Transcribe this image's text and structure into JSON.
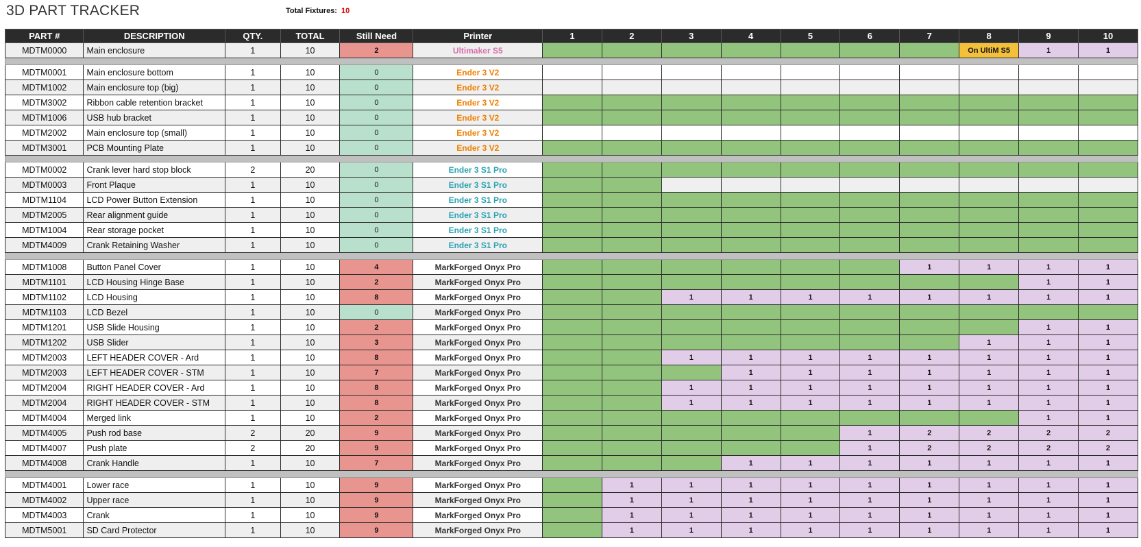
{
  "app": {
    "title": "3D PART TRACKER"
  },
  "summary": {
    "fixtures_label": "Total Fixtures:",
    "fixtures_value": "10"
  },
  "colors": {
    "Ultimaker S5": "#d670a8",
    "Ender 3 V2": "#f07f00",
    "Ender 3 S1 Pro": "#2aa3b4",
    "MarkForged Onyx Pro": "#333333",
    "done": "#93c47d",
    "pending": "#e2cde8",
    "need": "#e8948f",
    "complete": "#b9e0cc",
    "note": "#f3c03c"
  },
  "columns": [
    "PART #",
    "DESCRIPTION",
    "QTY.",
    "TOTAL",
    "Still Need",
    "Printer",
    "1",
    "2",
    "3",
    "4",
    "5",
    "6",
    "7",
    "8",
    "9",
    "10"
  ],
  "groups": [
    {
      "rows": [
        {
          "part": "MDTM0000",
          "desc": "Main enclosure",
          "qty": "1",
          "total": "10",
          "need": "2",
          "printer": "Ultimaker S5",
          "cells": [
            "G",
            "G",
            "G",
            "G",
            "G",
            "G",
            "G",
            "On UltiM S5",
            "1",
            "1"
          ]
        }
      ]
    },
    {
      "rows": [
        {
          "part": "MDTM0001",
          "desc": "Main enclosure bottom",
          "qty": "1",
          "total": "10",
          "need": "0",
          "printer": "Ender 3 V2",
          "cells": [
            "",
            "",
            "",
            "",
            "",
            "",
            "",
            "",
            "",
            ""
          ]
        },
        {
          "part": "MDTM1002",
          "desc": "Main enclosure top (big)",
          "qty": "1",
          "total": "10",
          "need": "0",
          "printer": "Ender 3 V2",
          "cells": [
            "",
            "",
            "",
            "",
            "",
            "",
            "",
            "",
            "",
            ""
          ]
        },
        {
          "part": "MDTM3002",
          "desc": "Ribbon cable retention bracket",
          "qty": "1",
          "total": "10",
          "need": "0",
          "printer": "Ender 3 V2",
          "cells": [
            "G",
            "G",
            "G",
            "G",
            "G",
            "G",
            "G",
            "G",
            "G",
            "G"
          ]
        },
        {
          "part": "MDTM1006",
          "desc": "USB hub bracket",
          "qty": "1",
          "total": "10",
          "need": "0",
          "printer": "Ender 3 V2",
          "cells": [
            "G",
            "G",
            "G",
            "G",
            "G",
            "G",
            "G",
            "G",
            "G",
            "G"
          ]
        },
        {
          "part": "MDTM2002",
          "desc": "Main enclosure top (small)",
          "qty": "1",
          "total": "10",
          "need": "0",
          "printer": "Ender 3 V2",
          "cells": [
            "",
            "",
            "",
            "",
            "",
            "",
            "",
            "",
            "",
            ""
          ]
        },
        {
          "part": "MDTM3001",
          "desc": "PCB Mounting Plate",
          "qty": "1",
          "total": "10",
          "need": "0",
          "printer": "Ender 3 V2",
          "cells": [
            "G",
            "G",
            "G",
            "G",
            "G",
            "G",
            "G",
            "G",
            "G",
            "G"
          ]
        }
      ]
    },
    {
      "rows": [
        {
          "part": "MDTM0002",
          "desc": "Crank lever hard stop block",
          "qty": "2",
          "total": "20",
          "need": "0",
          "printer": "Ender 3 S1 Pro",
          "cells": [
            "G",
            "G",
            "G",
            "G",
            "G",
            "G",
            "G",
            "G",
            "G",
            "G"
          ]
        },
        {
          "part": "MDTM0003",
          "desc": "Front Plaque",
          "qty": "1",
          "total": "10",
          "need": "0",
          "printer": "Ender 3 S1 Pro",
          "cells": [
            "G",
            "G",
            "",
            "",
            "",
            "",
            "",
            "",
            "",
            ""
          ]
        },
        {
          "part": "MDTM1104",
          "desc": "LCD Power Button Extension",
          "qty": "1",
          "total": "10",
          "need": "0",
          "printer": "Ender 3 S1 Pro",
          "cells": [
            "G",
            "G",
            "G",
            "G",
            "G",
            "G",
            "G",
            "G",
            "G",
            "G"
          ]
        },
        {
          "part": "MDTM2005",
          "desc": "Rear alignment guide",
          "qty": "1",
          "total": "10",
          "need": "0",
          "printer": "Ender 3 S1 Pro",
          "cells": [
            "G",
            "G",
            "G",
            "G",
            "G",
            "G",
            "G",
            "G",
            "G",
            "G"
          ]
        },
        {
          "part": "MDTM1004",
          "desc": "Rear storage pocket",
          "qty": "1",
          "total": "10",
          "need": "0",
          "printer": "Ender 3 S1 Pro",
          "cells": [
            "G",
            "G",
            "G",
            "G",
            "G",
            "G",
            "G",
            "G",
            "G",
            "G"
          ]
        },
        {
          "part": "MDTM4009",
          "desc": "Crank Retaining Washer",
          "qty": "1",
          "total": "10",
          "need": "0",
          "printer": "Ender 3 S1 Pro",
          "cells": [
            "G",
            "G",
            "G",
            "G",
            "G",
            "G",
            "G",
            "G",
            "G",
            "G"
          ]
        }
      ]
    },
    {
      "rows": [
        {
          "part": "MDTM1008",
          "desc": "Button Panel Cover",
          "qty": "1",
          "total": "10",
          "need": "4",
          "printer": "MarkForged Onyx Pro",
          "cells": [
            "G",
            "G",
            "G",
            "G",
            "G",
            "G",
            "1",
            "1",
            "1",
            "1"
          ]
        },
        {
          "part": "MDTM1101",
          "desc": "LCD Housing Hinge Base",
          "qty": "1",
          "total": "10",
          "need": "2",
          "printer": "MarkForged Onyx Pro",
          "cells": [
            "G",
            "G",
            "G",
            "G",
            "G",
            "G",
            "G",
            "G",
            "1",
            "1"
          ]
        },
        {
          "part": "MDTM1102",
          "desc": "LCD Housing",
          "qty": "1",
          "total": "10",
          "need": "8",
          "printer": "MarkForged Onyx Pro",
          "cells": [
            "G",
            "G",
            "1",
            "1",
            "1",
            "1",
            "1",
            "1",
            "1",
            "1"
          ]
        },
        {
          "part": "MDTM1103",
          "desc": "LCD Bezel",
          "qty": "1",
          "total": "10",
          "need": "0",
          "printer": "MarkForged Onyx Pro",
          "cells": [
            "G",
            "G",
            "G",
            "G",
            "G",
            "G",
            "G",
            "G",
            "G",
            "G"
          ]
        },
        {
          "part": "MDTM1201",
          "desc": "USB Slide Housing",
          "qty": "1",
          "total": "10",
          "need": "2",
          "printer": "MarkForged Onyx Pro",
          "cells": [
            "G",
            "G",
            "G",
            "G",
            "G",
            "G",
            "G",
            "G",
            "1",
            "1"
          ]
        },
        {
          "part": "MDTM1202",
          "desc": "USB Slider",
          "qty": "1",
          "total": "10",
          "need": "3",
          "printer": "MarkForged Onyx Pro",
          "cells": [
            "G",
            "G",
            "G",
            "G",
            "G",
            "G",
            "G",
            "1",
            "1",
            "1"
          ]
        },
        {
          "part": "MDTM2003",
          "desc": "LEFT HEADER COVER - Ard",
          "qty": "1",
          "total": "10",
          "need": "8",
          "printer": "MarkForged Onyx Pro",
          "cells": [
            "G",
            "G",
            "1",
            "1",
            "1",
            "1",
            "1",
            "1",
            "1",
            "1"
          ]
        },
        {
          "part": "MDTM2003",
          "desc": "LEFT HEADER COVER - STM",
          "qty": "1",
          "total": "10",
          "need": "7",
          "printer": "MarkForged Onyx Pro",
          "cells": [
            "G",
            "G",
            "G",
            "1",
            "1",
            "1",
            "1",
            "1",
            "1",
            "1"
          ]
        },
        {
          "part": "MDTM2004",
          "desc": "RIGHT HEADER COVER - Ard",
          "qty": "1",
          "total": "10",
          "need": "8",
          "printer": "MarkForged Onyx Pro",
          "cells": [
            "G",
            "G",
            "1",
            "1",
            "1",
            "1",
            "1",
            "1",
            "1",
            "1"
          ]
        },
        {
          "part": "MDTM2004",
          "desc": "RIGHT HEADER COVER - STM",
          "qty": "1",
          "total": "10",
          "need": "8",
          "printer": "MarkForged Onyx Pro",
          "cells": [
            "G",
            "G",
            "1",
            "1",
            "1",
            "1",
            "1",
            "1",
            "1",
            "1"
          ]
        },
        {
          "part": "MDTM4004",
          "desc": "Merged link",
          "qty": "1",
          "total": "10",
          "need": "2",
          "printer": "MarkForged Onyx Pro",
          "cells": [
            "G",
            "G",
            "G",
            "G",
            "G",
            "G",
            "G",
            "G",
            "1",
            "1"
          ]
        },
        {
          "part": "MDTM4005",
          "desc": "Push rod base",
          "qty": "2",
          "total": "20",
          "need": "9",
          "printer": "MarkForged Onyx Pro",
          "cells": [
            "G",
            "G",
            "G",
            "G",
            "G",
            "1",
            "2",
            "2",
            "2",
            "2"
          ]
        },
        {
          "part": "MDTM4007",
          "desc": "Push plate",
          "qty": "2",
          "total": "20",
          "need": "9",
          "printer": "MarkForged Onyx Pro",
          "cells": [
            "G",
            "G",
            "G",
            "G",
            "G",
            "1",
            "2",
            "2",
            "2",
            "2"
          ]
        },
        {
          "part": "MDTM4008",
          "desc": "Crank Handle",
          "qty": "1",
          "total": "10",
          "need": "7",
          "printer": "MarkForged Onyx Pro",
          "cells": [
            "G",
            "G",
            "G",
            "1",
            "1",
            "1",
            "1",
            "1",
            "1",
            "1"
          ]
        }
      ]
    },
    {
      "rows": [
        {
          "part": "MDTM4001",
          "desc": "Lower race",
          "qty": "1",
          "total": "10",
          "need": "9",
          "printer": "MarkForged Onyx Pro",
          "cells": [
            "G",
            "1",
            "1",
            "1",
            "1",
            "1",
            "1",
            "1",
            "1",
            "1"
          ]
        },
        {
          "part": "MDTM4002",
          "desc": "Upper race",
          "qty": "1",
          "total": "10",
          "need": "9",
          "printer": "MarkForged Onyx Pro",
          "cells": [
            "G",
            "1",
            "1",
            "1",
            "1",
            "1",
            "1",
            "1",
            "1",
            "1"
          ]
        },
        {
          "part": "MDTM4003",
          "desc": "Crank",
          "qty": "1",
          "total": "10",
          "need": "9",
          "printer": "MarkForged Onyx Pro",
          "cells": [
            "G",
            "1",
            "1",
            "1",
            "1",
            "1",
            "1",
            "1",
            "1",
            "1"
          ]
        },
        {
          "part": "MDTM5001",
          "desc": "SD Card Protector",
          "qty": "1",
          "total": "10",
          "need": "9",
          "printer": "MarkForged Onyx Pro",
          "cells": [
            "G",
            "1",
            "1",
            "1",
            "1",
            "1",
            "1",
            "1",
            "1",
            "1"
          ]
        }
      ]
    }
  ]
}
